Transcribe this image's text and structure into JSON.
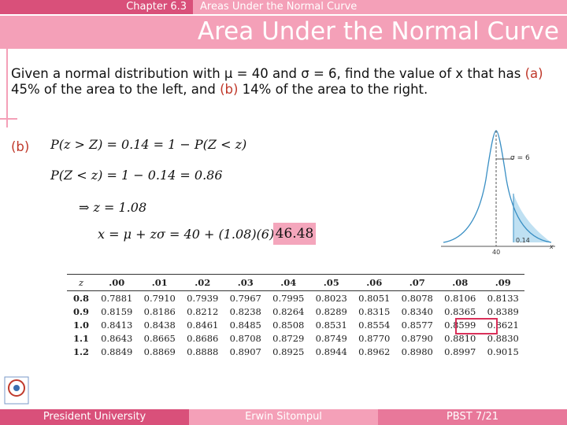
{
  "header": {
    "chapter": "Chapter 6.3",
    "section": "Areas Under the Normal Curve",
    "title": "Area Under the Normal Curve"
  },
  "problem": {
    "parts": [
      "Given a normal distribution with μ = 40 and σ = 6, find the value of x that has ",
      "(a)",
      " 45% of the area to the left, and ",
      "(b)",
      " 14% of the area to the right."
    ]
  },
  "solution": {
    "label": "(b)",
    "lines": [
      "P(z > Z) = 0.14 = 1 − P(Z < z)",
      "P(Z < z) = 1 − 0.14 = 0.86",
      "⇒ z = 1.08",
      "x = μ + zσ = 40 + (1.08)(6) = "
    ],
    "result": "46.48"
  },
  "figure": {
    "sigma": "σ = 6",
    "area": "0.14",
    "mean": "40",
    "axis": "x"
  },
  "table": {
    "columns": [
      "z",
      ".00",
      ".01",
      ".02",
      ".03",
      ".04",
      ".05",
      ".06",
      ".07",
      ".08",
      ".09"
    ],
    "rows": [
      [
        "0.8",
        "0.7881",
        "0.7910",
        "0.7939",
        "0.7967",
        "0.7995",
        "0.8023",
        "0.8051",
        "0.8078",
        "0.8106",
        "0.8133"
      ],
      [
        "0.9",
        "0.8159",
        "0.8186",
        "0.8212",
        "0.8238",
        "0.8264",
        "0.8289",
        "0.8315",
        "0.8340",
        "0.8365",
        "0.8389"
      ],
      [
        "1.0",
        "0.8413",
        "0.8438",
        "0.8461",
        "0.8485",
        "0.8508",
        "0.8531",
        "0.8554",
        "0.8577",
        "0.8599",
        "0.8621"
      ],
      [
        "1.1",
        "0.8643",
        "0.8665",
        "0.8686",
        "0.8708",
        "0.8729",
        "0.8749",
        "0.8770",
        "0.8790",
        "0.8810",
        "0.8830"
      ],
      [
        "1.2",
        "0.8849",
        "0.8869",
        "0.8888",
        "0.8907",
        "0.8925",
        "0.8944",
        "0.8962",
        "0.8980",
        "0.8997",
        "0.9015"
      ]
    ]
  },
  "footer": {
    "university": "President University",
    "author": "Erwin Sitompul",
    "page": "PBST 7/21"
  }
}
